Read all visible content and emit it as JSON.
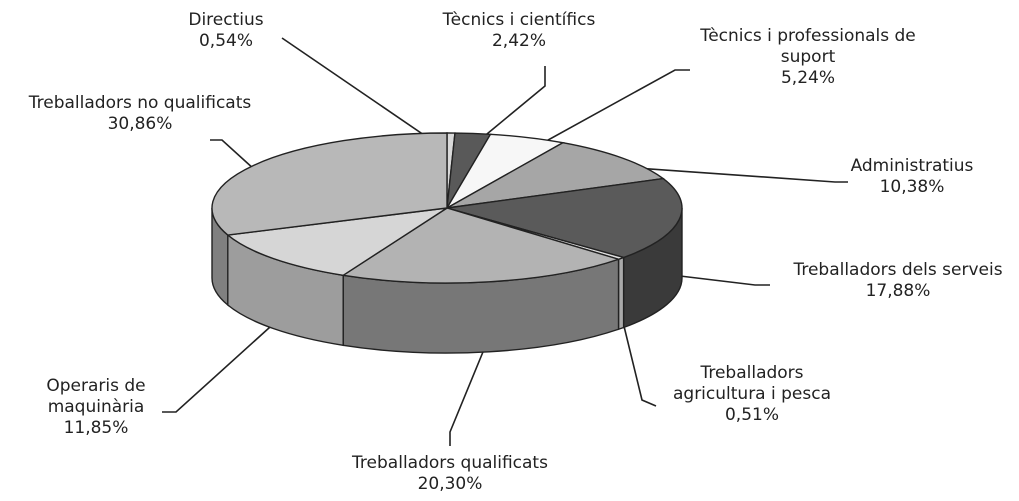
{
  "chart_data": {
    "type": "pie",
    "categories": [
      "Directius",
      "Tècnics i científics",
      "Tècnics i professionals de suport",
      "Administratius",
      "Treballadors dels serveis",
      "Treballadors agricultura i pesca",
      "Treballadors qualificats",
      "Operaris de maquinària",
      "Treballadors no qualificats"
    ],
    "values": [
      0.54,
      2.42,
      5.24,
      10.38,
      17.88,
      0.51,
      20.3,
      11.85,
      30.86
    ],
    "value_labels": [
      "0,54%",
      "2,42%",
      "5,24%",
      "10,38%",
      "17,88%",
      "0,51%",
      "20,30%",
      "11,85%",
      "30,86%"
    ],
    "colors": [
      "#d9d9d9",
      "#595959",
      "#f7f7f7",
      "#a6a6a6",
      "#5a5a5a",
      "#e0e0e0",
      "#b3b3b3",
      "#d6d6d6",
      "#b8b8b8"
    ],
    "side_colors": [
      "#9a9a9a",
      "#333333",
      "#bcbcbc",
      "#6e6e6e",
      "#3a3a3a",
      "#aaaaaa",
      "#777777",
      "#9d9d9d",
      "#808080"
    ]
  }
}
